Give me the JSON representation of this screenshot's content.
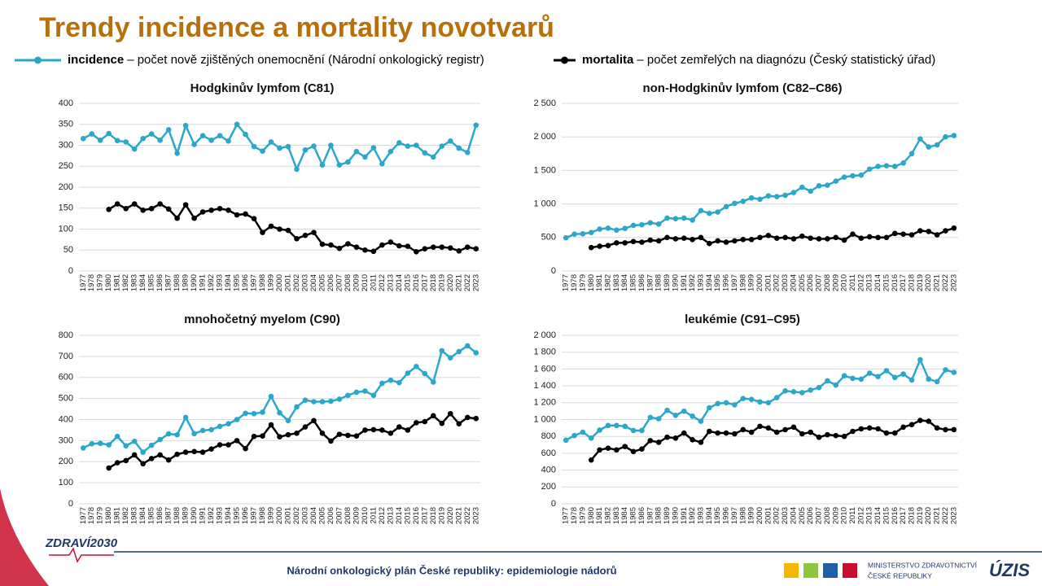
{
  "title": "Trendy incidence a mortality novotvarů",
  "legend": [
    {
      "name": "incidence",
      "description": "– počet nově zjištěných onemocnění (Národní onkologický registr)"
    },
    {
      "name": "mortalita",
      "description": "– počet zemřelých na diagnózu (Český statistický úřad)"
    }
  ],
  "footer": {
    "text": "Národní onkologický plán České republiky: epidemiologie nádorů",
    "logo_left": "ZDRAVÍ2030",
    "ministry_line1": "MINISTERSTVO ZDRAVOTNICTVÍ",
    "ministry_line2": "ČESKÉ REPUBLIKY",
    "logo_right": "ÚZIS"
  },
  "chart_data": [
    {
      "type": "line",
      "title": "Hodgkinův lymfom (C81)",
      "categories": [
        "1977",
        "1978",
        "1979",
        "1980",
        "1981",
        "1982",
        "1983",
        "1984",
        "1985",
        "1986",
        "1987",
        "1988",
        "1989",
        "1990",
        "1991",
        "1992",
        "1993",
        "1994",
        "1995",
        "1996",
        "1997",
        "1998",
        "1999",
        "2000",
        "2001",
        "2002",
        "2003",
        "2004",
        "2005",
        "2006",
        "2007",
        "2008",
        "2009",
        "2010",
        "2011",
        "2012",
        "2013",
        "2014",
        "2015",
        "2016",
        "2017",
        "2018",
        "2019",
        "2020",
        "2021",
        "2022",
        "2023"
      ],
      "ylim": [
        0,
        400
      ],
      "yticks": [
        0,
        50,
        100,
        150,
        200,
        250,
        300,
        350,
        400
      ],
      "grid": true,
      "series": [
        {
          "color": "#2aa7c9",
          "values": [
            316,
            327,
            312,
            328,
            311,
            308,
            291,
            316,
            327,
            312,
            337,
            281,
            347,
            302,
            323,
            312,
            323,
            310,
            350,
            326,
            297,
            286,
            308,
            293,
            297,
            243,
            289,
            298,
            253,
            300,
            253,
            260,
            285,
            272,
            294,
            256,
            285,
            306,
            298,
            300,
            282,
            272,
            298,
            310,
            293,
            283,
            348
          ]
        },
        {
          "color": "#000000",
          "values": [
            null,
            null,
            null,
            147,
            160,
            149,
            160,
            145,
            149,
            160,
            148,
            126,
            158,
            126,
            141,
            145,
            149,
            145,
            134,
            136,
            125,
            92,
            107,
            100,
            97,
            77,
            85,
            92,
            64,
            62,
            54,
            65,
            57,
            50,
            47,
            62,
            69,
            60,
            59,
            46,
            53,
            57,
            57,
            55,
            48,
            57,
            53
          ]
        }
      ]
    },
    {
      "type": "line",
      "title": "non-Hodgkinův lymfom (C82–C86)",
      "categories": [
        "1977",
        "1978",
        "1979",
        "1980",
        "1981",
        "1982",
        "1983",
        "1984",
        "1985",
        "1986",
        "1987",
        "1988",
        "1989",
        "1990",
        "1991",
        "1992",
        "1993",
        "1994",
        "1995",
        "1996",
        "1997",
        "1998",
        "1999",
        "2000",
        "2001",
        "2002",
        "2003",
        "2004",
        "2005",
        "2006",
        "2007",
        "2008",
        "2009",
        "2010",
        "2011",
        "2012",
        "2013",
        "2014",
        "2015",
        "2016",
        "2017",
        "2018",
        "2019",
        "2020",
        "2021",
        "2022",
        "2023"
      ],
      "ylim": [
        0,
        2500
      ],
      "yticks": [
        0,
        500,
        {
          "value": 1000,
          "label": "1 000"
        },
        {
          "value": 1500,
          "label": "1 500"
        },
        {
          "value": 2000,
          "label": "2 000"
        },
        {
          "value": 2500,
          "label": "2 500"
        }
      ],
      "grid": true,
      "series": [
        {
          "color": "#2aa7c9",
          "values": [
            495,
            550,
            555,
            575,
            625,
            640,
            610,
            635,
            680,
            690,
            720,
            700,
            790,
            780,
            790,
            760,
            900,
            860,
            880,
            960,
            1010,
            1040,
            1090,
            1070,
            1120,
            1110,
            1130,
            1170,
            1250,
            1190,
            1270,
            1280,
            1340,
            1400,
            1420,
            1430,
            1520,
            1560,
            1570,
            1560,
            1610,
            1750,
            1970,
            1850,
            1880,
            2000,
            2020
          ]
        },
        {
          "color": "#000000",
          "values": [
            null,
            null,
            null,
            350,
            370,
            380,
            420,
            420,
            440,
            430,
            460,
            450,
            500,
            480,
            490,
            470,
            500,
            410,
            450,
            430,
            450,
            470,
            470,
            500,
            530,
            490,
            500,
            480,
            520,
            490,
            480,
            480,
            500,
            460,
            550,
            490,
            510,
            500,
            500,
            560,
            550,
            540,
            600,
            590,
            540,
            600,
            640
          ]
        }
      ]
    },
    {
      "type": "line",
      "title": "mnohočetný myelom (C90)",
      "categories": [
        "1977",
        "1978",
        "1979",
        "1980",
        "1981",
        "1982",
        "1983",
        "1984",
        "1985",
        "1986",
        "1987",
        "1988",
        "1989",
        "1990",
        "1991",
        "1992",
        "1993",
        "1994",
        "1995",
        "1996",
        "1997",
        "1998",
        "1999",
        "2000",
        "2001",
        "2002",
        "2003",
        "2004",
        "2005",
        "2006",
        "2007",
        "2008",
        "2009",
        "2010",
        "2011",
        "2012",
        "2013",
        "2014",
        "2015",
        "2016",
        "2017",
        "2018",
        "2019",
        "2020",
        "2021",
        "2022",
        "2023"
      ],
      "ylim": [
        0,
        800
      ],
      "yticks": [
        0,
        100,
        200,
        300,
        400,
        500,
        600,
        700,
        800
      ],
      "grid": true,
      "series": [
        {
          "color": "#2aa7c9",
          "values": [
            265,
            285,
            287,
            280,
            320,
            275,
            297,
            245,
            278,
            305,
            332,
            328,
            410,
            333,
            348,
            352,
            368,
            380,
            400,
            430,
            428,
            435,
            510,
            432,
            395,
            460,
            492,
            485,
            485,
            487,
            497,
            515,
            530,
            535,
            515,
            572,
            587,
            575,
            620,
            652,
            618,
            578,
            727,
            693,
            723,
            750,
            717
          ]
        },
        {
          "color": "#000000",
          "values": [
            null,
            null,
            null,
            170,
            195,
            205,
            232,
            190,
            215,
            232,
            208,
            235,
            245,
            248,
            245,
            260,
            280,
            280,
            300,
            262,
            320,
            322,
            375,
            318,
            328,
            335,
            365,
            395,
            335,
            298,
            330,
            325,
            322,
            350,
            352,
            350,
            335,
            365,
            350,
            385,
            390,
            418,
            382,
            428,
            380,
            410,
            405
          ]
        }
      ]
    },
    {
      "type": "line",
      "title": "leukémie (C91–C95)",
      "categories": [
        "1977",
        "1978",
        "1979",
        "1980",
        "1981",
        "1982",
        "1983",
        "1984",
        "1985",
        "1986",
        "1987",
        "1988",
        "1989",
        "1990",
        "1991",
        "1992",
        "1993",
        "1994",
        "1995",
        "1996",
        "1997",
        "1998",
        "1999",
        "2000",
        "2001",
        "2002",
        "2003",
        "2004",
        "2005",
        "2006",
        "2007",
        "2008",
        "2009",
        "2010",
        "2011",
        "2012",
        "2013",
        "2014",
        "2015",
        "2016",
        "2017",
        "2018",
        "2019",
        "2020",
        "2021",
        "2022",
        "2023"
      ],
      "ylim": [
        0,
        2000
      ],
      "yticks": [
        0,
        200,
        400,
        600,
        800,
        {
          "value": 1000,
          "label": "1 000"
        },
        {
          "value": 1200,
          "label": "1 200"
        },
        {
          "value": 1400,
          "label": "1 400"
        },
        {
          "value": 1600,
          "label": "1 600"
        },
        {
          "value": 1800,
          "label": "1 800"
        },
        {
          "value": 2000,
          "label": "2 000"
        }
      ],
      "grid": true,
      "series": [
        {
          "color": "#2aa7c9",
          "values": [
            755,
            810,
            850,
            780,
            875,
            930,
            930,
            920,
            870,
            870,
            1025,
            1010,
            1110,
            1050,
            1100,
            1040,
            980,
            1140,
            1190,
            1200,
            1175,
            1250,
            1240,
            1210,
            1200,
            1260,
            1340,
            1330,
            1320,
            1350,
            1380,
            1460,
            1410,
            1520,
            1490,
            1480,
            1550,
            1510,
            1580,
            1500,
            1540,
            1470,
            1710,
            1480,
            1450,
            1590,
            1560
          ]
        },
        {
          "color": "#000000",
          "values": [
            null,
            null,
            null,
            520,
            640,
            660,
            640,
            680,
            620,
            650,
            750,
            730,
            790,
            780,
            840,
            760,
            730,
            860,
            840,
            840,
            830,
            880,
            850,
            920,
            900,
            850,
            880,
            910,
            830,
            850,
            790,
            820,
            810,
            800,
            860,
            890,
            900,
            890,
            840,
            840,
            910,
            940,
            990,
            980,
            900,
            880,
            880
          ]
        }
      ]
    }
  ]
}
